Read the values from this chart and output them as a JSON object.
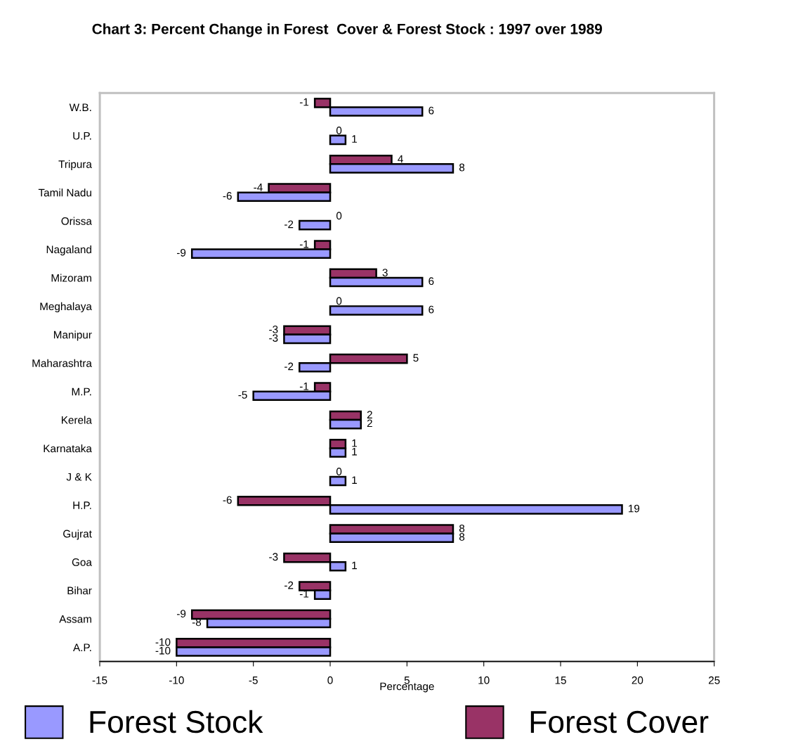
{
  "chart_data": {
    "type": "bar",
    "orientation": "horizontal",
    "title": "Chart 3: Percent Change in Forest  Cover & Forest Stock : 1997 over 1989",
    "xlabel": "Percentage",
    "categories": [
      "W.B.",
      "U.P.",
      "Tripura",
      "Tamil Nadu",
      "Orissa",
      "Nagaland",
      "Mizoram",
      "Meghalaya",
      "Manipur",
      "Maharashtra",
      "M.P.",
      "Kerela",
      "Karnataka",
      "J & K",
      "H.P.",
      "Gujrat",
      "Goa",
      "Bihar",
      "Assam",
      "A.P."
    ],
    "series": [
      {
        "name": "Forest Cover",
        "color": "#993366",
        "values": [
          -1,
          0,
          4,
          -4,
          0,
          -1,
          3,
          0,
          -3,
          5,
          -1,
          2,
          1,
          0,
          -6,
          8,
          -3,
          -2,
          -9,
          -10
        ]
      },
      {
        "name": "Forest Stock",
        "color": "#9999ff",
        "values": [
          6,
          1,
          8,
          -6,
          -2,
          -9,
          6,
          6,
          -3,
          -2,
          -5,
          2,
          1,
          1,
          19,
          8,
          1,
          -1,
          -8,
          -10
        ]
      }
    ],
    "xlim": [
      -15,
      25
    ],
    "xticks": [
      -15,
      -10,
      -5,
      0,
      5,
      10,
      15,
      20,
      25
    ],
    "data_labels": true,
    "grid": false,
    "legend": "bottom"
  }
}
